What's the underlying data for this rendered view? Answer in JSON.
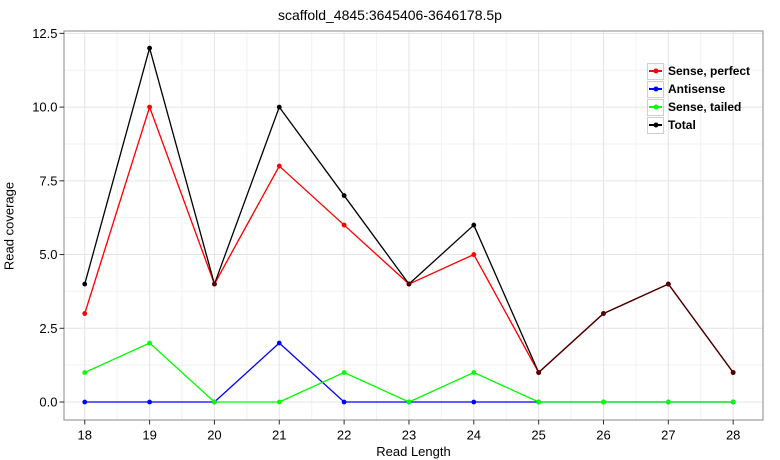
{
  "figure": {
    "title": "scaffold_4845:3645406-3646178.5p"
  },
  "chart_data": {
    "type": "line",
    "title": "scaffold_4845:3645406-3646178.5p",
    "xlabel": "Read Length",
    "ylabel": "Read coverage",
    "x": [
      18,
      19,
      20,
      21,
      22,
      23,
      24,
      25,
      26,
      27,
      28
    ],
    "x_tick_labels": [
      "18",
      "19",
      "20",
      "21",
      "22",
      "23",
      "24",
      "25",
      "26",
      "27",
      "28"
    ],
    "y_ticks": [
      0,
      2.5,
      5,
      7.5,
      10,
      12.5
    ],
    "y_tick_labels": [
      "0.0",
      "2.5",
      "5.0",
      "7.5",
      "10.0",
      "12.5"
    ],
    "x_minor_ticks": [
      18.5,
      19.5,
      20.5,
      21.5,
      22.5,
      23.5,
      24.5,
      25.5,
      26.5,
      27.5
    ],
    "y_minor_ticks": [
      1.25,
      3.75,
      6.25,
      8.75,
      11.25
    ],
    "xlim": [
      17.68,
      28.46
    ],
    "ylim": [
      -0.61,
      12.58
    ],
    "grid": true,
    "legend_position": "top-right-inside",
    "series": [
      {
        "name": "Sense, perfect",
        "color": "#FF0000",
        "values": [
          3,
          10,
          4,
          8,
          6,
          4,
          5,
          1,
          3,
          4,
          1
        ]
      },
      {
        "name": "Antisense",
        "color": "#0000FF",
        "values": [
          0,
          0,
          0,
          2,
          0,
          0,
          0,
          0,
          0,
          0,
          0
        ]
      },
      {
        "name": "Sense, tailed",
        "color": "#00FF00",
        "values": [
          1,
          2,
          0,
          0,
          1,
          0,
          1,
          0,
          0,
          0,
          0
        ]
      },
      {
        "name": "Total",
        "color": "#000000",
        "values": [
          4,
          12,
          4,
          10,
          7,
          4,
          6,
          1,
          3,
          4,
          1
        ]
      }
    ]
  },
  "style_colors": {
    "background": "#FFFFFF",
    "grid_major": "#E4E4E4",
    "grid_minor": "#F2F2F2",
    "panel_border": "#8A8A8A",
    "tick_mark": "#2B2B2B",
    "text": "#000000",
    "legend_key_border": "#CFCFCF"
  }
}
